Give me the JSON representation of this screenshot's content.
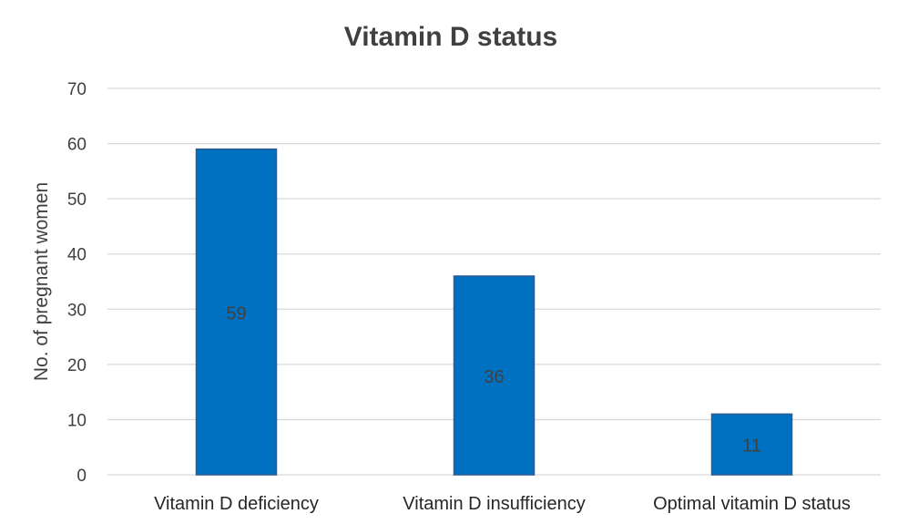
{
  "chart_data": {
    "type": "bar",
    "title": "Vitamin D status",
    "xlabel": "",
    "ylabel": "No. of pregnant women",
    "categories": [
      "Vitamin D deficiency",
      "Vitamin D insufficiency",
      "Optimal vitamin D status"
    ],
    "values": [
      59,
      36,
      11
    ],
    "data_labels": [
      "59",
      "36",
      "11"
    ],
    "ylim": [
      0,
      70
    ],
    "yticks": [
      "0",
      "10",
      "20",
      "30",
      "40",
      "50",
      "60",
      "70"
    ],
    "grid": true,
    "legend": "none",
    "bar_color": "#0070c0"
  }
}
